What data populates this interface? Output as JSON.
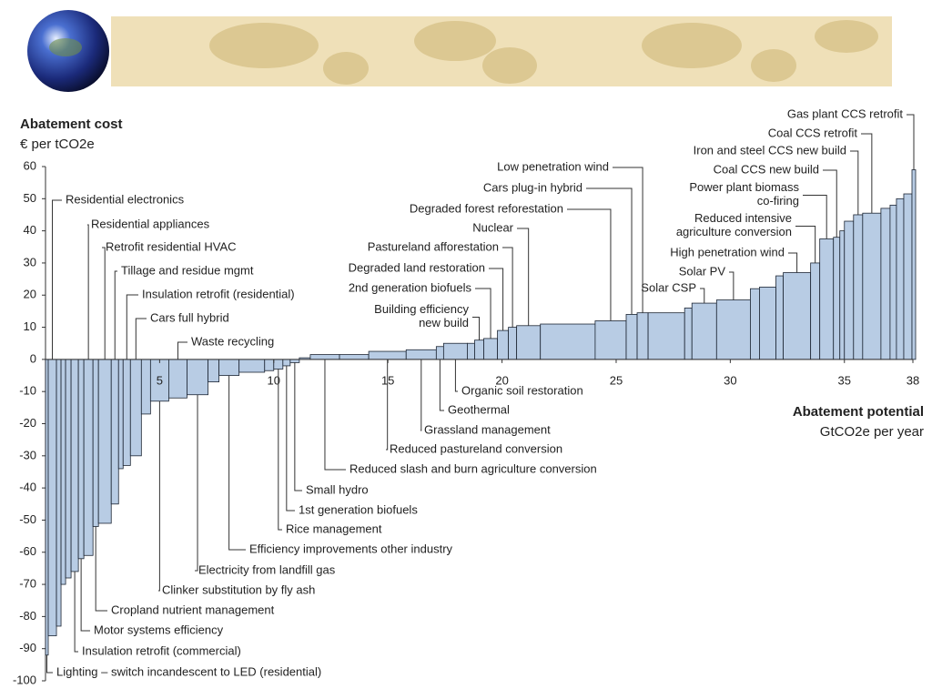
{
  "chart_data": {
    "type": "cost_curve",
    "y_title": "Abatement cost",
    "y_unit": "€ per tCO2e",
    "x_title": "Abatement potential",
    "x_unit": "GtCO2e per year",
    "categories": [
      "Lighting – switch incandescent to LED (residential)",
      "Residential electronics",
      null,
      null,
      null,
      "Insulation retrofit (commercial)",
      "Motor systems efficiency",
      "Residential appliances",
      "Cropland nutrient management",
      "Retrofit residential HVAC",
      "Tillage and residue mgmt",
      null,
      "Insulation retrofit (residential)",
      "Cars full hybrid",
      null,
      "Clinker substitution by fly ash",
      "Waste recycling",
      "Electricity from landfill gas",
      null,
      "Efficiency improvements other industry",
      null,
      null,
      "Rice management",
      "1st generation biofuels",
      "Small hydro",
      null,
      "Reduced slash and burn agriculture conversion",
      null,
      "Reduced pastureland conversion",
      "Grassland management",
      "Geothermal",
      "Organic soil restoration",
      null,
      "Building efficiency\nnew build",
      "2nd generation biofuels",
      "Degraded land restoration",
      "Pastureland afforestation",
      "Nuclear",
      null,
      "Degraded forest reforestation",
      "Cars plug-in hybrid",
      "Low penetration wind",
      null,
      null,
      "Solar CSP",
      "Solar PV",
      null,
      null,
      null,
      "High penetration wind",
      "Reduced intensive\nagriculture conversion",
      "Power plant biomass\nco-firing",
      "Coal CCS new build",
      null,
      null,
      "Iron and steel CCS new build",
      "Coal CCS retrofit",
      null,
      null,
      null,
      null,
      "Gas plant CCS retrofit"
    ],
    "values": [
      -92,
      -86,
      -83,
      -70,
      -68,
      -66,
      -62,
      -61,
      -52,
      -51,
      -45,
      -34,
      -33,
      -30,
      -17,
      -13,
      -12,
      -11,
      -7,
      -5,
      -4,
      -3.5,
      -3,
      -2,
      -1,
      0.5,
      1.5,
      1.5,
      2.5,
      3,
      4,
      5,
      5,
      6,
      6.5,
      9,
      10,
      10.5,
      11,
      12,
      14,
      14.5,
      14.5,
      16,
      17.5,
      18.5,
      22,
      22.5,
      26,
      27,
      30,
      37.5,
      38,
      40,
      43,
      45,
      45.5,
      47,
      48,
      50,
      51.5,
      59
    ],
    "widths": [
      0.12,
      0.36,
      0.2,
      0.2,
      0.24,
      0.32,
      0.24,
      0.4,
      0.24,
      0.56,
      0.32,
      0.2,
      0.32,
      0.48,
      0.4,
      0.8,
      0.8,
      0.92,
      0.48,
      0.88,
      1.12,
      0.4,
      0.4,
      0.32,
      0.4,
      0.48,
      1.28,
      1.28,
      1.64,
      1.32,
      0.32,
      1.04,
      0.32,
      0.4,
      0.6,
      0.48,
      0.36,
      1.04,
      2.4,
      1.36,
      0.48,
      0.48,
      1.6,
      0.32,
      1.08,
      1.48,
      0.4,
      0.72,
      0.32,
      1.2,
      0.4,
      0.6,
      0.28,
      0.2,
      0.4,
      0.4,
      0.8,
      0.4,
      0.28,
      0.32,
      0.36,
      0.16
    ],
    "color": "#b8cce4",
    "xlim": [
      0,
      38
    ],
    "xticks": [
      5,
      10,
      15,
      20,
      25,
      30,
      35,
      38
    ],
    "ylim": [
      -100,
      60
    ],
    "yticks": [
      -100,
      -90,
      -80,
      -70,
      -60,
      -50,
      -40,
      -30,
      -20,
      -10,
      0,
      10,
      20,
      30,
      40,
      50,
      60
    ]
  }
}
